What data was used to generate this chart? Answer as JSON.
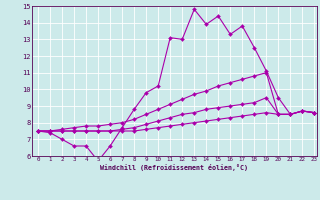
{
  "background_color": "#cceaea",
  "line_color": "#aa00aa",
  "x_min": 0,
  "x_max": 23,
  "y_min": 6,
  "y_max": 15,
  "xlabel": "Windchill (Refroidissement éolien,°C)",
  "x_ticks": [
    0,
    1,
    2,
    3,
    4,
    5,
    6,
    7,
    8,
    9,
    10,
    11,
    12,
    13,
    14,
    15,
    16,
    17,
    18,
    19,
    20,
    21,
    22,
    23
  ],
  "y_ticks": [
    6,
    7,
    8,
    9,
    10,
    11,
    12,
    13,
    14,
    15
  ],
  "series": [
    {
      "x": [
        0,
        1,
        2,
        3,
        4,
        5,
        6,
        7,
        8,
        9,
        10,
        11,
        12,
        13,
        14,
        15,
        16,
        17,
        18,
        19,
        20,
        21,
        22,
        23
      ],
      "y": [
        7.5,
        7.4,
        7.0,
        6.6,
        6.6,
        5.7,
        6.6,
        7.7,
        8.8,
        9.8,
        10.2,
        13.1,
        13.0,
        14.8,
        13.9,
        14.4,
        13.3,
        13.8,
        12.5,
        11.1,
        9.5,
        8.5,
        8.7,
        8.6
      ]
    },
    {
      "x": [
        0,
        1,
        2,
        3,
        4,
        5,
        6,
        7,
        8,
        9,
        10,
        11,
        12,
        13,
        14,
        15,
        16,
        17,
        18,
        19,
        20,
        21,
        22,
        23
      ],
      "y": [
        7.5,
        7.5,
        7.6,
        7.7,
        7.8,
        7.8,
        7.9,
        8.0,
        8.2,
        8.5,
        8.8,
        9.1,
        9.4,
        9.7,
        9.9,
        10.2,
        10.4,
        10.6,
        10.8,
        11.0,
        8.5,
        8.5,
        8.7,
        8.6
      ]
    },
    {
      "x": [
        0,
        1,
        2,
        3,
        4,
        5,
        6,
        7,
        8,
        9,
        10,
        11,
        12,
        13,
        14,
        15,
        16,
        17,
        18,
        19,
        20,
        21,
        22,
        23
      ],
      "y": [
        7.5,
        7.5,
        7.5,
        7.5,
        7.5,
        7.5,
        7.5,
        7.6,
        7.7,
        7.9,
        8.1,
        8.3,
        8.5,
        8.6,
        8.8,
        8.9,
        9.0,
        9.1,
        9.2,
        9.5,
        8.5,
        8.5,
        8.7,
        8.6
      ]
    },
    {
      "x": [
        0,
        1,
        2,
        3,
        4,
        5,
        6,
        7,
        8,
        9,
        10,
        11,
        12,
        13,
        14,
        15,
        16,
        17,
        18,
        19,
        20,
        21,
        22,
        23
      ],
      "y": [
        7.5,
        7.5,
        7.5,
        7.5,
        7.5,
        7.5,
        7.5,
        7.5,
        7.5,
        7.6,
        7.7,
        7.8,
        7.9,
        8.0,
        8.1,
        8.2,
        8.3,
        8.4,
        8.5,
        8.6,
        8.5,
        8.5,
        8.7,
        8.6
      ]
    }
  ]
}
